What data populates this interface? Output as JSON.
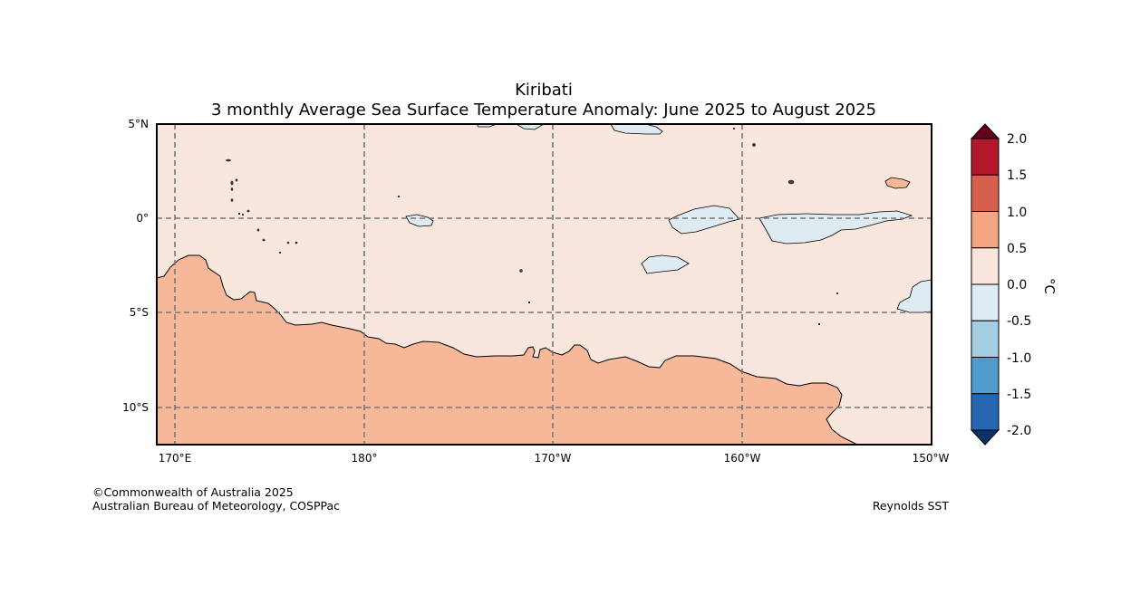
{
  "title": {
    "line1": "Kiribati",
    "line2": "3 monthly Average Sea Surface Temperature Anomaly: June 2025 to August 2025"
  },
  "map": {
    "lat_labels": [
      "5°N",
      "0°",
      "5°S",
      "10°S"
    ],
    "lon_labels": [
      "170°E",
      "180°",
      "170°W",
      "160°W",
      "150°W"
    ]
  },
  "colorbar": {
    "unit": "°C",
    "ticks": [
      "2.0",
      "1.5",
      "1.0",
      "0.5",
      "0.0",
      "-0.5",
      "-1.0",
      "-1.5",
      "-2.0"
    ],
    "colors": {
      "above_2": "#67001f",
      "1.5_to_2.0": "#b2182b",
      "1.0_to_1.5": "#d6604d",
      "0.5_to_1.0": "#f4a582",
      "0.0_to_0.5": "#f9e6dc",
      "-0.5_to_0.0": "#deebf2",
      "-1.0_to_-0.5": "#a6cee3",
      "-1.5_to_-1.0": "#4f9bcb",
      "-2.0_to_-1.5": "#2467b0",
      "below_-2": "#08306b"
    }
  },
  "footer": {
    "copyright": "©Commonwealth of Australia 2025",
    "agency": "Australian Bureau of Meteorology, COSPPac",
    "source": "Reynolds SST"
  }
}
